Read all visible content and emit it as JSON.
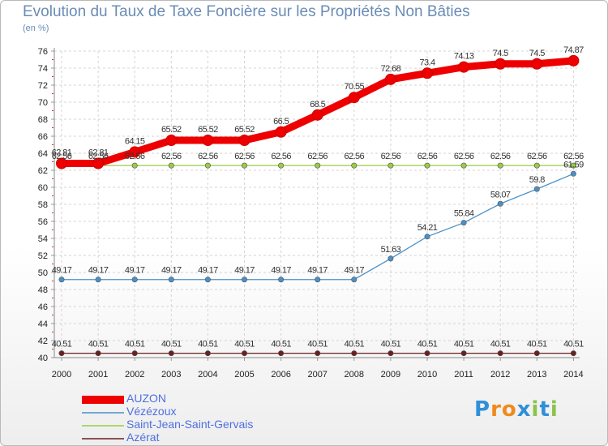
{
  "header": {
    "title": "Evolution du Taux de Taxe Foncière sur les Propriétés Non Bâties",
    "unit": "(en %)"
  },
  "chart_data": {
    "type": "line",
    "title": "Evolution du Taux de Taxe Foncière sur les Propriétés Non Bâties",
    "ylabel": "(en %)",
    "xlabel": "",
    "x": [
      "2000",
      "2001",
      "2002",
      "2003",
      "2004",
      "2005",
      "2006",
      "2007",
      "2008",
      "2009",
      "2010",
      "2011",
      "2012",
      "2013",
      "2014"
    ],
    "ylim": [
      40,
      76
    ],
    "yticks": [
      40,
      42,
      44,
      46,
      48,
      50,
      52,
      54,
      56,
      58,
      60,
      62,
      64,
      66,
      68,
      70,
      72,
      74,
      76
    ],
    "grid": true,
    "legend_position": "bottom-left",
    "series": [
      {
        "name": "AUZON",
        "color": "#ee0000",
        "values": [
          62.81,
          62.81,
          64.15,
          65.52,
          65.52,
          65.52,
          66.5,
          68.5,
          70.55,
          72.68,
          73.4,
          74.13,
          74.5,
          74.5,
          74.87
        ],
        "labels": [
          "62.81",
          "62.81",
          "64.15",
          "65.52",
          "65.52",
          "65.52",
          "66.5",
          "68.5",
          "70.55",
          "72.68",
          "73.4",
          "74.13",
          "74.5",
          "74.5",
          "74.87"
        ]
      },
      {
        "name": "Vézézoux",
        "color": "#4a90c8",
        "values": [
          49.17,
          49.17,
          49.17,
          49.17,
          49.17,
          49.17,
          49.17,
          49.17,
          49.17,
          51.63,
          54.21,
          55.84,
          58.07,
          59.8,
          61.59
        ],
        "labels": [
          "49.17",
          "49.17",
          "49.17",
          "49.17",
          "49.17",
          "49.17",
          "49.17",
          "49.17",
          "49.17",
          "51.63",
          "54.21",
          "55.84",
          "58.07",
          "59.8",
          "61.59"
        ]
      },
      {
        "name": "Saint-Jean-Saint-Gervais",
        "color": "#99cc44",
        "values": [
          62.56,
          62.56,
          62.56,
          62.56,
          62.56,
          62.56,
          62.56,
          62.56,
          62.56,
          62.56,
          62.56,
          62.56,
          62.56,
          62.56,
          62.56
        ],
        "labels": [
          "62.56",
          "62.56",
          "62.56",
          "62.56",
          "62.56",
          "62.56",
          "62.56",
          "62.56",
          "62.56",
          "62.56",
          "62.56",
          "62.56",
          "62.56",
          "62.56",
          "62.56"
        ]
      },
      {
        "name": "Azérat",
        "color": "#6b1f1f",
        "values": [
          40.51,
          40.51,
          40.51,
          40.51,
          40.51,
          40.51,
          40.51,
          40.51,
          40.51,
          40.51,
          40.51,
          40.51,
          40.51,
          40.51,
          40.51
        ],
        "labels": [
          "40.51",
          "40.51",
          "40.51",
          "40.51",
          "40.51",
          "40.51",
          "40.51",
          "40.51",
          "40.51",
          "40.51",
          "40.51",
          "40.51",
          "40.51",
          "40.51",
          "40.51"
        ]
      }
    ]
  },
  "logo": {
    "letters": [
      "P",
      "r",
      "o",
      "x",
      "i",
      "t",
      "i"
    ],
    "colors": [
      "#2f8fd8",
      "#f08a1c",
      "#f08a1c",
      "#2f8fd8",
      "#8bc34a",
      "#2f8fd8",
      "#8bc34a"
    ]
  }
}
